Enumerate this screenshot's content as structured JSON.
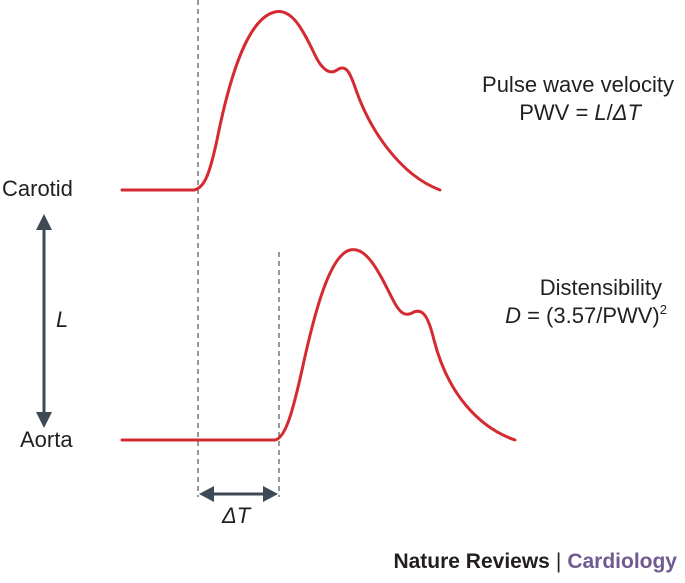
{
  "diagram": {
    "waves": {
      "carotid_label": "Carotid",
      "aorta_label": "Aorta"
    },
    "distance": {
      "label": "L"
    },
    "delay": {
      "label": "ΔT"
    },
    "pwv": {
      "title": "Pulse wave velocity",
      "formula_prefix": "PWV = ",
      "formula_var_l": "L",
      "formula_slash": "/",
      "formula_var_dt": "ΔT"
    },
    "distensibility": {
      "title": "Distensibility",
      "formula_var_d": "D",
      "formula_rest": " = (3.57/PWV)",
      "formula_exp": "2"
    },
    "colors": {
      "wave": "#d42a32",
      "arrow": "#3d4a55",
      "text": "#231f20",
      "dashed": "#555555",
      "section": "#6f5b8f"
    }
  },
  "footer": {
    "journal": "Nature Reviews",
    "separator": "|",
    "section": "Cardiology"
  }
}
